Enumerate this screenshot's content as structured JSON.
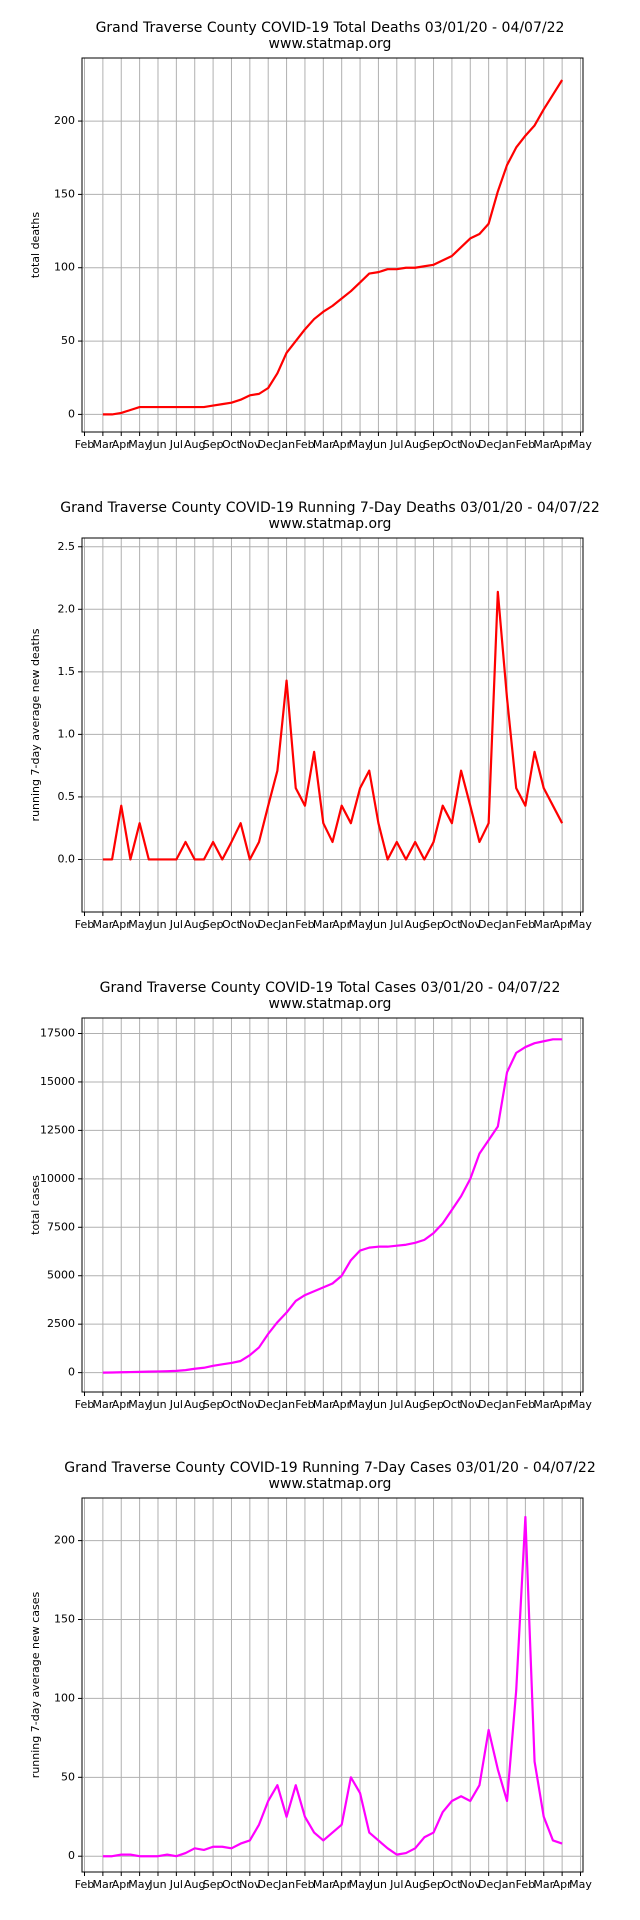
{
  "chart_data": [
    {
      "type": "line",
      "title": "Grand Traverse County COVID-19 Total Deaths 03/01/20 - 04/07/22",
      "subtitle": "www.statmap.org",
      "ylabel": "total deaths",
      "color": "#ff0000",
      "grid": true,
      "categories": [
        "Feb",
        null,
        "Mar",
        null,
        "Apr",
        null,
        "May",
        null,
        "Jun",
        null,
        "Jul",
        null,
        "Aug",
        null,
        "Sep",
        null,
        "Oct",
        null,
        "Nov",
        null,
        "Dec",
        null,
        "Jan",
        null,
        "Feb",
        null,
        "Mar",
        null,
        "Apr",
        null,
        "May",
        null,
        "Jun",
        null,
        "Jul",
        null,
        "Aug",
        null,
        "Sep",
        null,
        "Oct",
        null,
        "Nov",
        null,
        "Dec",
        null,
        "Jan",
        null,
        "Feb",
        null,
        "Mar",
        null,
        "Apr",
        null,
        "May"
      ],
      "values": [
        null,
        null,
        0,
        0,
        1,
        3,
        5,
        5,
        5,
        5,
        5,
        5,
        5,
        5,
        6,
        7,
        8,
        10,
        13,
        14,
        18,
        28,
        42,
        50,
        58,
        65,
        70,
        74,
        79,
        84,
        90,
        96,
        97,
        99,
        99,
        100,
        100,
        101,
        102,
        105,
        108,
        114,
        120,
        123,
        130,
        152,
        170,
        182,
        190,
        197,
        208,
        218,
        228,
        null,
        null
      ],
      "ylim": [
        -12,
        243
      ],
      "yticks": [
        0,
        50,
        100,
        150,
        200
      ]
    },
    {
      "type": "line",
      "title": "Grand Traverse County COVID-19 Running 7-Day Deaths 03/01/20 - 04/07/22",
      "subtitle": "www.statmap.org",
      "ylabel": "running 7-day average new deaths",
      "color": "#ff0000",
      "grid": true,
      "categories": [
        "Feb",
        null,
        "Mar",
        null,
        "Apr",
        null,
        "May",
        null,
        "Jun",
        null,
        "Jul",
        null,
        "Aug",
        null,
        "Sep",
        null,
        "Oct",
        null,
        "Nov",
        null,
        "Dec",
        null,
        "Jan",
        null,
        "Feb",
        null,
        "Mar",
        null,
        "Apr",
        null,
        "May",
        null,
        "Jun",
        null,
        "Jul",
        null,
        "Aug",
        null,
        "Sep",
        null,
        "Oct",
        null,
        "Nov",
        null,
        "Dec",
        null,
        "Jan",
        null,
        "Feb",
        null,
        "Mar",
        null,
        "Apr",
        null,
        "May"
      ],
      "values": [
        null,
        null,
        0,
        0,
        0.43,
        0,
        0.29,
        0,
        0,
        0,
        0,
        0.14,
        0,
        0,
        0.14,
        0,
        0.14,
        0.29,
        0,
        0.14,
        0.43,
        0.71,
        1.43,
        0.57,
        0.43,
        0.86,
        0.29,
        0.14,
        0.43,
        0.29,
        0.57,
        0.71,
        0.29,
        0,
        0.14,
        0,
        0.14,
        0,
        0.14,
        0.43,
        0.29,
        0.71,
        0.43,
        0.14,
        0.29,
        2.14,
        1.29,
        0.57,
        0.43,
        0.86,
        0.57,
        0.43,
        0.29,
        null,
        null
      ],
      "ylim": [
        -0.42,
        2.57
      ],
      "yticks": [
        {
          "value": 0,
          "label": "0.0"
        },
        0.5,
        {
          "value": 1,
          "label": "1.0"
        },
        1.5,
        {
          "value": 2,
          "label": "2.0"
        },
        2.5
      ]
    },
    {
      "type": "line",
      "title": "Grand Traverse County COVID-19 Total Cases 03/01/20 - 04/07/22",
      "subtitle": "www.statmap.org",
      "ylabel": "total cases",
      "color": "#ff00ff",
      "grid": true,
      "categories": [
        "Feb",
        null,
        "Mar",
        null,
        "Apr",
        null,
        "May",
        null,
        "Jun",
        null,
        "Jul",
        null,
        "Aug",
        null,
        "Sep",
        null,
        "Oct",
        null,
        "Nov",
        null,
        "Dec",
        null,
        "Jan",
        null,
        "Feb",
        null,
        "Mar",
        null,
        "Apr",
        null,
        "May",
        null,
        "Jun",
        null,
        "Jul",
        null,
        "Aug",
        null,
        "Sep",
        null,
        "Oct",
        null,
        "Nov",
        null,
        "Dec",
        null,
        "Jan",
        null,
        "Feb",
        null,
        "Mar",
        null,
        "Apr",
        null,
        "May"
      ],
      "values": [
        null,
        null,
        0,
        5,
        20,
        30,
        40,
        50,
        60,
        70,
        90,
        130,
        200,
        250,
        350,
        430,
        500,
        600,
        900,
        1300,
        2000,
        2600,
        3100,
        3700,
        4000,
        4200,
        4400,
        4600,
        5000,
        5800,
        6300,
        6450,
        6500,
        6500,
        6550,
        6600,
        6700,
        6850,
        7200,
        7700,
        8400,
        9100,
        10000,
        11300,
        12000,
        12700,
        15500,
        16500,
        16800,
        17000,
        17100,
        17200,
        17200,
        null,
        null
      ],
      "ylim": [
        -1000,
        18300
      ],
      "yticks": [
        0,
        2500,
        5000,
        7500,
        10000,
        12500,
        15000,
        17500
      ]
    },
    {
      "type": "line",
      "title": "Grand Traverse County COVID-19 Running 7-Day Cases 03/01/20 - 04/07/22",
      "subtitle": "www.statmap.org",
      "ylabel": "running 7-day average new cases",
      "color": "#ff00ff",
      "grid": true,
      "categories": [
        "Feb",
        null,
        "Mar",
        null,
        "Apr",
        null,
        "May",
        null,
        "Jun",
        null,
        "Jul",
        null,
        "Aug",
        null,
        "Sep",
        null,
        "Oct",
        null,
        "Nov",
        null,
        "Dec",
        null,
        "Jan",
        null,
        "Feb",
        null,
        "Mar",
        null,
        "Apr",
        null,
        "May",
        null,
        "Jun",
        null,
        "Jul",
        null,
        "Aug",
        null,
        "Sep",
        null,
        "Oct",
        null,
        "Nov",
        null,
        "Dec",
        null,
        "Jan",
        null,
        "Feb",
        null,
        "Mar",
        null,
        "Apr",
        null,
        "May"
      ],
      "values": [
        null,
        null,
        0,
        0,
        1,
        1,
        0,
        0,
        0,
        1,
        0,
        2,
        5,
        4,
        6,
        6,
        5,
        8,
        10,
        20,
        35,
        45,
        25,
        45,
        25,
        15,
        10,
        15,
        20,
        50,
        40,
        15,
        10,
        5,
        1,
        2,
        5,
        12,
        15,
        28,
        35,
        38,
        35,
        45,
        80,
        55,
        35,
        105,
        215,
        60,
        25,
        10,
        8,
        null,
        null
      ],
      "ylim": [
        -10,
        227
      ],
      "yticks": [
        0,
        50,
        100,
        150,
        200
      ]
    }
  ]
}
